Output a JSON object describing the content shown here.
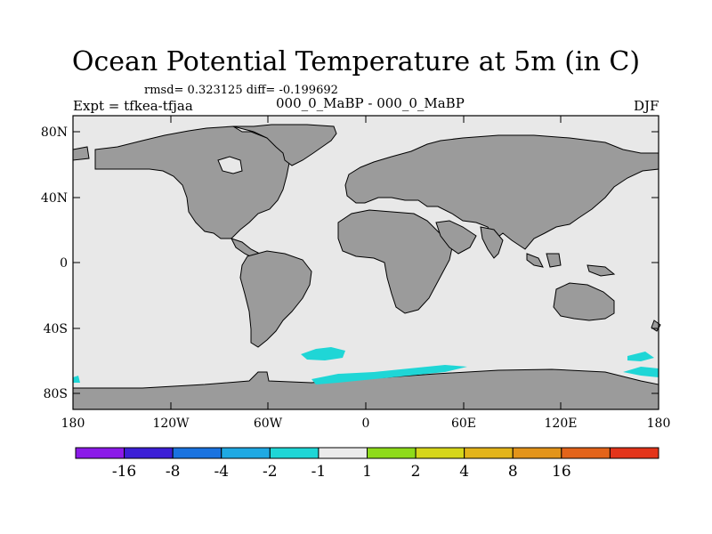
{
  "title": "Ocean Potential Temperature at 5m (in C)",
  "stats": "rmsd= 0.323125 diff= -0.199692",
  "left_label": "Expt = tfkea-tfjaa",
  "center_label": "000_0_MaBP - 000_0_MaBP",
  "right_label": "DJF",
  "lat_ticks": [
    "80N",
    "40N",
    "0",
    "40S",
    "80S"
  ],
  "lon_ticks": [
    "180",
    "120W",
    "60W",
    "0",
    "60E",
    "120E",
    "180"
  ],
  "colorbar": {
    "colors": [
      "#8b1ae8",
      "#3c1fd6",
      "#1a73e0",
      "#1fa9e3",
      "#1fd6d6",
      "#ebebeb",
      "#8edb1a",
      "#d6d61a",
      "#e3b41a",
      "#e3941a",
      "#e3641a",
      "#e3341a"
    ],
    "labels": [
      "-16",
      "-8",
      "-4",
      "-2",
      "-1",
      "1",
      "2",
      "4",
      "8",
      "16"
    ]
  },
  "colors": {
    "ocean": "#e8e8e8",
    "land": "#9b9b9b",
    "anomaly": "#1fd6d6"
  }
}
